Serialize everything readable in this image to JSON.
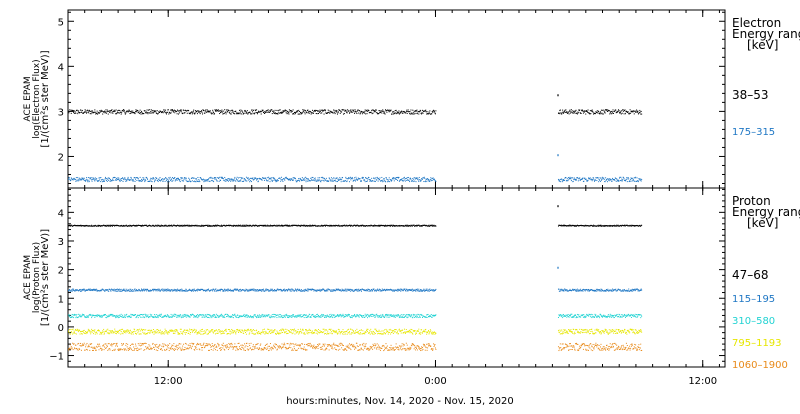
{
  "chart_data": [
    {
      "type": "scatter",
      "panel": "electron",
      "ylabel": [
        "ACE EPAM",
        "log(Electron Flux)",
        "[1/(cm²s ster MeV)]"
      ],
      "ylim": [
        1.3,
        5.25
      ],
      "yticks": [
        2,
        3,
        4,
        5
      ],
      "legend_title": [
        "Electron",
        "Energy ranges",
        "[keV]"
      ],
      "series": [
        {
          "name": "38-53",
          "color": "#000000",
          "segments": [
            {
              "x": [
                0,
                66
              ],
              "y": 3.0,
              "jitter": 0.05
            },
            {
              "x": [
                88,
                103
              ],
              "y": 3.0,
              "jitter": 0.05
            }
          ],
          "spikes": [
            {
              "x": 87.9,
              "y": 3.38
            }
          ]
        },
        {
          "name": "175-315",
          "color": "#1f77c4",
          "segments": [
            {
              "x": [
                0,
                66
              ],
              "y": 1.5,
              "jitter": 0.05
            },
            {
              "x": [
                88,
                103
              ],
              "y": 1.5,
              "jitter": 0.05
            }
          ],
          "spikes": [
            {
              "x": 87.9,
              "y": 2.05
            }
          ]
        }
      ]
    },
    {
      "type": "scatter",
      "panel": "proton",
      "ylabel": [
        "ACE EPAM",
        "log(Proton Flux)",
        "[1/(cm²s ster MeV)]"
      ],
      "ylim": [
        -1.4,
        4.85
      ],
      "yticks": [
        -1,
        0,
        1,
        2,
        3,
        4
      ],
      "legend_title": [
        "Proton",
        "Energy ranges",
        "[keV]"
      ],
      "series": [
        {
          "name": "47-68",
          "color": "#000000",
          "segments": [
            {
              "x": [
                0,
                66
              ],
              "y": 3.55,
              "jitter": 0.02
            },
            {
              "x": [
                88,
                103
              ],
              "y": 3.55,
              "jitter": 0.02
            }
          ],
          "spikes": [
            {
              "x": 87.9,
              "y": 4.25
            }
          ]
        },
        {
          "name": "115-195",
          "color": "#1f77c4",
          "segments": [
            {
              "x": [
                0,
                66
              ],
              "y": 1.3,
              "jitter": 0.04
            },
            {
              "x": [
                88,
                103
              ],
              "y": 1.3,
              "jitter": 0.04
            }
          ],
          "spikes": [
            {
              "x": 87.9,
              "y": 2.1
            }
          ]
        },
        {
          "name": "310-580",
          "color": "#22d3d3",
          "segments": [
            {
              "x": [
                0,
                66
              ],
              "y": 0.4,
              "jitter": 0.06
            },
            {
              "x": [
                88,
                103
              ],
              "y": 0.4,
              "jitter": 0.06
            }
          ],
          "spikes": []
        },
        {
          "name": "795-1193",
          "color": "#e6e600",
          "segments": [
            {
              "x": [
                0,
                66
              ],
              "y": -0.15,
              "jitter": 0.09
            },
            {
              "x": [
                88,
                103
              ],
              "y": -0.15,
              "jitter": 0.09
            }
          ],
          "spikes": []
        },
        {
          "name": "1060-1900",
          "color": "#e88a1a",
          "segments": [
            {
              "x": [
                0,
                66
              ],
              "y": -0.68,
              "jitter": 0.13
            },
            {
              "x": [
                88,
                103
              ],
              "y": -0.68,
              "jitter": 0.13
            }
          ],
          "spikes": []
        }
      ]
    }
  ],
  "xaxis": {
    "label": "hours:minutes, Nov. 14, 2020 - Nov. 15, 2020",
    "range": [
      0,
      118
    ],
    "major_ticks": [
      {
        "x": 18,
        "label": "12:00"
      },
      {
        "x": 66,
        "label": "0:00"
      },
      {
        "x": 114,
        "label": "12:00"
      }
    ]
  }
}
